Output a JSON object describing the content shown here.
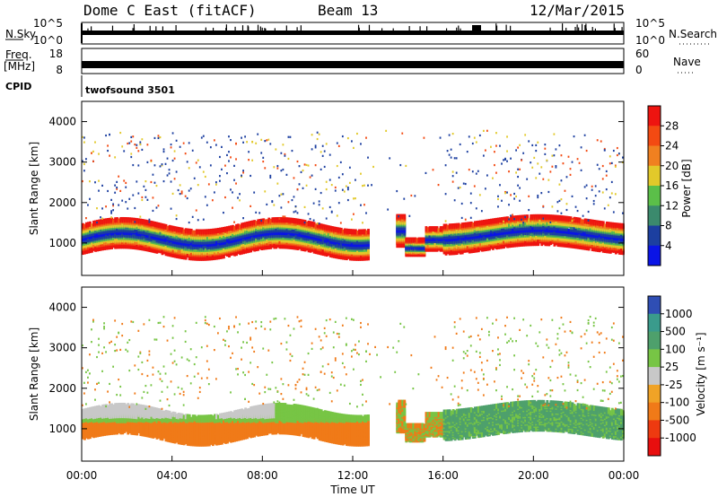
{
  "header": {
    "station": "Dome C East (fitACF)",
    "beam": "Beam 13",
    "date": "12/Mar/2015"
  },
  "side_labels": {
    "nsky": "N.Sky",
    "freq": "Freq.",
    "mhz": "[MHz]",
    "cpid": "CPID",
    "nsearch": "N.Search",
    "nave": "Nave",
    "cpid_value": "twofsound 3501"
  },
  "chart_data": [
    {
      "type": "line",
      "panel": "N.Sky / N.Search",
      "left_ticks": [
        "10^5",
        "10^0"
      ],
      "right_ticks": [
        "10^5",
        "10^0"
      ]
    },
    {
      "type": "line",
      "panel": "Freq. / Nave",
      "left_ticks": [
        "18",
        "8"
      ],
      "right_ticks": [
        "60",
        "0"
      ]
    },
    {
      "type": "heatmap",
      "panel": "Power",
      "ylabel": "Slant Range [km]",
      "yticks": [
        "1000",
        "2000",
        "3000",
        "4000"
      ],
      "ylim": [
        200,
        4500
      ],
      "xlim": [
        "00:00",
        "24:00"
      ],
      "colorbar_label": "Power [dB]",
      "colorbar_ticks": [
        "4",
        "8",
        "12",
        "16",
        "20",
        "24",
        "28"
      ],
      "colors": [
        "#0a14e6",
        "#1c3fa0",
        "#3b8a6d",
        "#5bbf49",
        "#e2c92a",
        "#f08020",
        "#f34a12",
        "#ee1410"
      ]
    },
    {
      "type": "heatmap",
      "panel": "Velocity",
      "ylabel": "Slant Range [km]",
      "yticks": [
        "1000",
        "2000",
        "3000",
        "4000"
      ],
      "ylim": [
        200,
        4500
      ],
      "xlim": [
        "00:00",
        "24:00"
      ],
      "colorbar_label": "Velocity [m s⁻¹]",
      "colorbar_ticks": [
        "1000",
        "500",
        "100",
        "25",
        "-25",
        "-100",
        "-500",
        "-1000"
      ],
      "colors": [
        "#2f4eb4",
        "#3a9b8c",
        "#4ea06c",
        "#77c545",
        "#c8c8c8",
        "#f0a326",
        "#f07a18",
        "#ee3a10",
        "#e80e0e"
      ]
    }
  ],
  "xaxis": {
    "label": "Time UT",
    "ticks": [
      "00:00",
      "04:00",
      "08:00",
      "12:00",
      "16:00",
      "20:00",
      "00:00"
    ]
  }
}
